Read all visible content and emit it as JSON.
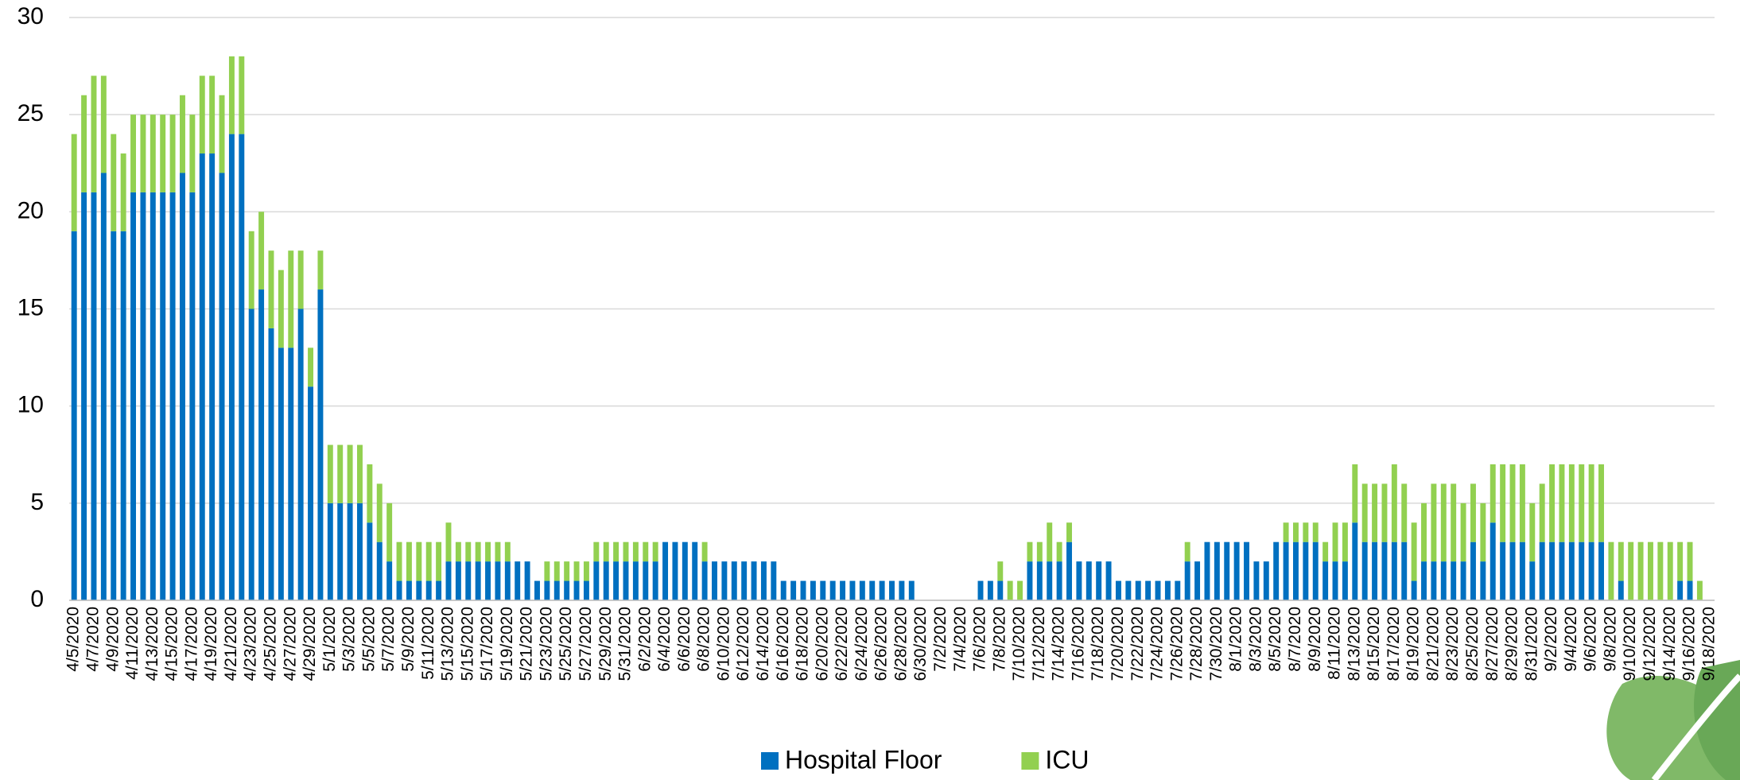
{
  "chart_data": {
    "type": "stacked_bar",
    "categories": [
      "4/5/2020",
      null,
      "4/7/2020",
      null,
      "4/9/2020",
      null,
      "4/11/2020",
      null,
      "4/13/2020",
      null,
      "4/15/2020",
      null,
      "4/17/2020",
      null,
      "4/19/2020",
      null,
      "4/21/2020",
      null,
      "4/23/2020",
      null,
      "4/25/2020",
      null,
      "4/27/2020",
      null,
      "4/29/2020",
      null,
      "5/1/2020",
      null,
      "5/3/2020",
      null,
      "5/5/2020",
      null,
      "5/7/2020",
      null,
      "5/9/2020",
      null,
      "5/11/2020",
      null,
      "5/13/2020",
      null,
      "5/15/2020",
      null,
      "5/17/2020",
      null,
      "5/19/2020",
      null,
      "5/21/2020",
      null,
      "5/23/2020",
      null,
      "5/25/2020",
      null,
      "5/27/2020",
      null,
      "5/29/2020",
      null,
      "5/31/2020",
      null,
      "6/2/2020",
      null,
      "6/4/2020",
      null,
      "6/6/2020",
      null,
      "6/8/2020",
      null,
      "6/10/2020",
      null,
      "6/12/2020",
      null,
      "6/14/2020",
      null,
      "6/16/2020",
      null,
      "6/18/2020",
      null,
      "6/20/2020",
      null,
      "6/22/2020",
      null,
      "6/24/2020",
      null,
      "6/26/2020",
      null,
      "6/28/2020",
      null,
      "6/30/2020",
      null,
      "7/2/2020",
      null,
      "7/4/2020",
      null,
      "7/6/2020",
      null,
      "7/8/2020",
      null,
      "7/10/2020",
      null,
      "7/12/2020",
      null,
      "7/14/2020",
      null,
      "7/16/2020",
      null,
      "7/18/2020",
      null,
      "7/20/2020",
      null,
      "7/22/2020",
      null,
      "7/24/2020",
      null,
      "7/26/2020",
      null,
      "7/28/2020",
      null,
      "7/30/2020",
      null,
      "8/1/2020",
      null,
      "8/3/2020",
      null,
      "8/5/2020",
      null,
      "8/7/2020",
      null,
      "8/9/2020",
      null,
      "8/11/2020",
      null,
      "8/13/2020",
      null,
      "8/15/2020",
      null,
      "8/17/2020",
      null,
      "8/19/2020",
      null,
      "8/21/2020",
      null,
      "8/23/2020",
      null,
      "8/25/2020",
      null,
      "8/27/2020",
      null,
      "8/29/2020",
      null,
      "8/31/2020",
      null,
      "9/2/2020",
      null,
      "9/4/2020",
      null,
      "9/6/2020",
      null,
      "9/8/2020",
      null,
      "9/10/2020",
      null,
      "9/12/2020",
      null,
      "9/14/2020",
      null,
      "9/16/2020",
      null,
      "9/18/2020"
    ],
    "series": [
      {
        "name": "Hospital Floor",
        "color": "#0070c0",
        "values": [
          19,
          21,
          21,
          22,
          19,
          19,
          21,
          21,
          21,
          21,
          21,
          22,
          21,
          23,
          23,
          22,
          24,
          24,
          15,
          16,
          14,
          13,
          13,
          15,
          11,
          16,
          5,
          5,
          5,
          5,
          4,
          3,
          2,
          1,
          1,
          1,
          1,
          1,
          2,
          2,
          2,
          2,
          2,
          2,
          2,
          2,
          2,
          1,
          1,
          1,
          1,
          1,
          1,
          2,
          2,
          2,
          2,
          2,
          2,
          2,
          3,
          3,
          3,
          3,
          2,
          2,
          2,
          2,
          2,
          2,
          2,
          2,
          1,
          1,
          1,
          1,
          1,
          1,
          1,
          1,
          1,
          1,
          1,
          1,
          1,
          1,
          0,
          0,
          0,
          0,
          0,
          0,
          1,
          1,
          1,
          0,
          0,
          2,
          2,
          2,
          2,
          3,
          2,
          2,
          2,
          2,
          1,
          1,
          1,
          1,
          1,
          1,
          1,
          2,
          2,
          3,
          3,
          3,
          3,
          3,
          2,
          2,
          3,
          3,
          3,
          3,
          3,
          2,
          2,
          2,
          4,
          3,
          3,
          3,
          3,
          3,
          1,
          2,
          2,
          2,
          2,
          2,
          3,
          2,
          4,
          3,
          3,
          3,
          2,
          3,
          3,
          3,
          3,
          3,
          3,
          3,
          0,
          1,
          0,
          0,
          0,
          0,
          0,
          1,
          1,
          0,
          0
        ]
      },
      {
        "name": "ICU",
        "color": "#92d050",
        "values": [
          5,
          5,
          6,
          5,
          5,
          4,
          4,
          4,
          4,
          4,
          4,
          4,
          4,
          4,
          4,
          4,
          4,
          4,
          4,
          4,
          4,
          4,
          5,
          3,
          2,
          2,
          3,
          3,
          3,
          3,
          3,
          3,
          3,
          2,
          2,
          2,
          2,
          2,
          2,
          1,
          1,
          1,
          1,
          1,
          1,
          0,
          0,
          0,
          1,
          1,
          1,
          1,
          1,
          1,
          1,
          1,
          1,
          1,
          1,
          1,
          0,
          0,
          0,
          0,
          1,
          0,
          0,
          0,
          0,
          0,
          0,
          0,
          0,
          0,
          0,
          0,
          0,
          0,
          0,
          0,
          0,
          0,
          0,
          0,
          0,
          0,
          0,
          0,
          0,
          0,
          0,
          0,
          0,
          0,
          1,
          1,
          1,
          1,
          1,
          2,
          1,
          1,
          0,
          0,
          0,
          0,
          0,
          0,
          0,
          0,
          0,
          0,
          0,
          1,
          0,
          0,
          0,
          0,
          0,
          0,
          0,
          0,
          0,
          1,
          1,
          1,
          1,
          1,
          2,
          2,
          3,
          3,
          3,
          3,
          4,
          3,
          3,
          3,
          4,
          4,
          4,
          3,
          3,
          3,
          3,
          4,
          4,
          4,
          3,
          3,
          4,
          4,
          4,
          4,
          4,
          4,
          3,
          2,
          3,
          3,
          3,
          3,
          3,
          2,
          2,
          1,
          0
        ]
      }
    ],
    "ylim": [
      0,
      30
    ],
    "yticks": [
      0,
      5,
      10,
      15,
      20,
      25,
      30
    ],
    "grid": true,
    "legend": "bottom"
  }
}
